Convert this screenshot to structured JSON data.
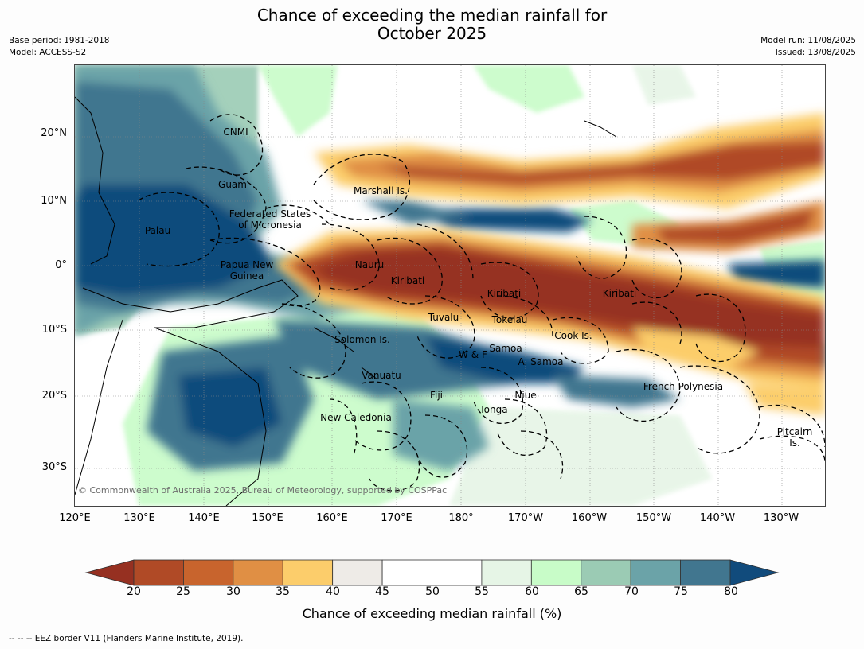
{
  "title": {
    "line1": "Chance of exceeding the median rainfall for",
    "line2": "October 2025"
  },
  "meta": {
    "base_period": "Base period: 1981-2018",
    "model": "Model: ACCESS-S2",
    "model_run": "Model run: 11/08/2025",
    "issued": "Issued: 13/08/2025"
  },
  "axes": {
    "lat_labels": [
      "20°N",
      "10°N",
      "0°",
      "10°S",
      "20°S",
      "30°S"
    ],
    "lon_labels": [
      "120°E",
      "130°E",
      "140°E",
      "150°E",
      "160°E",
      "170°E",
      "180°",
      "170°W",
      "160°W",
      "150°W",
      "140°W",
      "130°W"
    ]
  },
  "places": [
    {
      "name": "CNMI"
    },
    {
      "name": "Guam"
    },
    {
      "name": "Marshall Is."
    },
    {
      "name": "Federated States\nof Micronesia"
    },
    {
      "name": "Palau"
    },
    {
      "name": "Nauru"
    },
    {
      "name": "Papua New\nGuinea"
    },
    {
      "name": "Kiribati"
    },
    {
      "name": "Kiribati"
    },
    {
      "name": "Kiribati"
    },
    {
      "name": "Tuvalu"
    },
    {
      "name": "Tokelau"
    },
    {
      "name": "Cook Is."
    },
    {
      "name": "Solomon Is."
    },
    {
      "name": "Samoa"
    },
    {
      "name": "W & F"
    },
    {
      "name": "A. Samoa"
    },
    {
      "name": "Vanuatu"
    },
    {
      "name": "Fiji"
    },
    {
      "name": "Niue"
    },
    {
      "name": "French Polynesia"
    },
    {
      "name": "Tonga"
    },
    {
      "name": "New Caledonia"
    },
    {
      "name": "Pitcairn\nIs."
    }
  ],
  "credit": "© Commonwealth of Australia 2025, Bureau of Meteorology, supported by COSPPac",
  "colorbar": {
    "label": "Chance of exceeding median rainfall (%)",
    "ticks": [
      "20",
      "25",
      "30",
      "35",
      "40",
      "45",
      "50",
      "55",
      "60",
      "65",
      "70",
      "75",
      "80"
    ],
    "low_extend_color": "#963021",
    "high_extend_color": "#114b7c",
    "colors": [
      "#b04a26",
      "#c8642d",
      "#e08f44",
      "#fccd6b",
      "#eeebe7",
      "#ffffff",
      "#ffffff",
      "#e6f5e6",
      "#c8fcc8",
      "#9bcbb4",
      "#6ba3a8",
      "#41768f"
    ]
  },
  "footer": "--  --  -- EEZ border V11 (Flanders Marine Institute, 2019)."
}
